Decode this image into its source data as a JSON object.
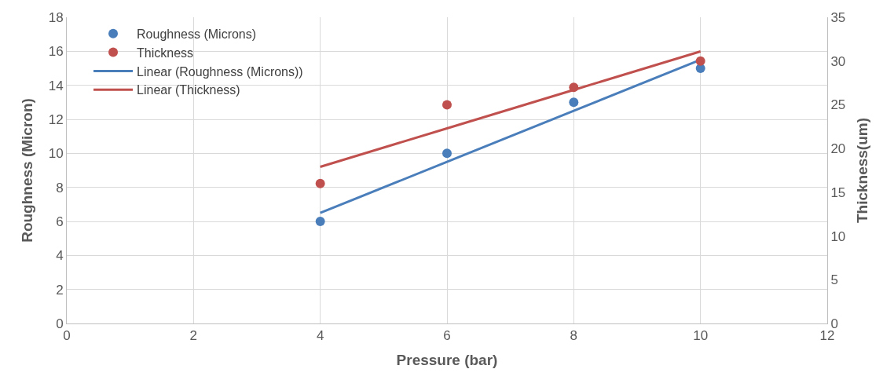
{
  "chart_data": {
    "type": "scatter",
    "xlabel": "Pressure (bar)",
    "ylabel": "Roughness (Micron)",
    "y2label": "Thickness(um)",
    "x": [
      4,
      6,
      8,
      10
    ],
    "series": [
      {
        "name": "Roughness (Microns)",
        "color": "#4a7ebb",
        "values": [
          6,
          10,
          13,
          15
        ],
        "marker": "circle"
      },
      {
        "name": "Thickness",
        "color": "#c0504d",
        "values": [
          16,
          25,
          27,
          30
        ],
        "axis": "y2",
        "marker": "circle"
      },
      {
        "name": "Linear (Roughness (Microns))",
        "type": "line",
        "color": "#4a7ebb",
        "values": [
          6.5,
          9.5,
          12.5,
          15.5
        ],
        "marker": "none"
      },
      {
        "name": "Linear (Thickness)",
        "type": "line",
        "color": "#c0504d",
        "values": [
          17.9,
          22.3,
          26.7,
          31.1
        ],
        "axis": "y2",
        "marker": "none"
      }
    ],
    "xlim": [
      0,
      12
    ],
    "xticks": [
      0,
      2,
      4,
      6,
      8,
      10,
      12
    ],
    "ylim": [
      0,
      18
    ],
    "yticks": [
      0,
      2,
      4,
      6,
      8,
      10,
      12,
      14,
      16,
      18
    ],
    "y2lim": [
      0,
      35
    ],
    "y2ticks": [
      0,
      5,
      10,
      15,
      20,
      25,
      30,
      35
    ],
    "grid": true,
    "legend": "top left"
  }
}
